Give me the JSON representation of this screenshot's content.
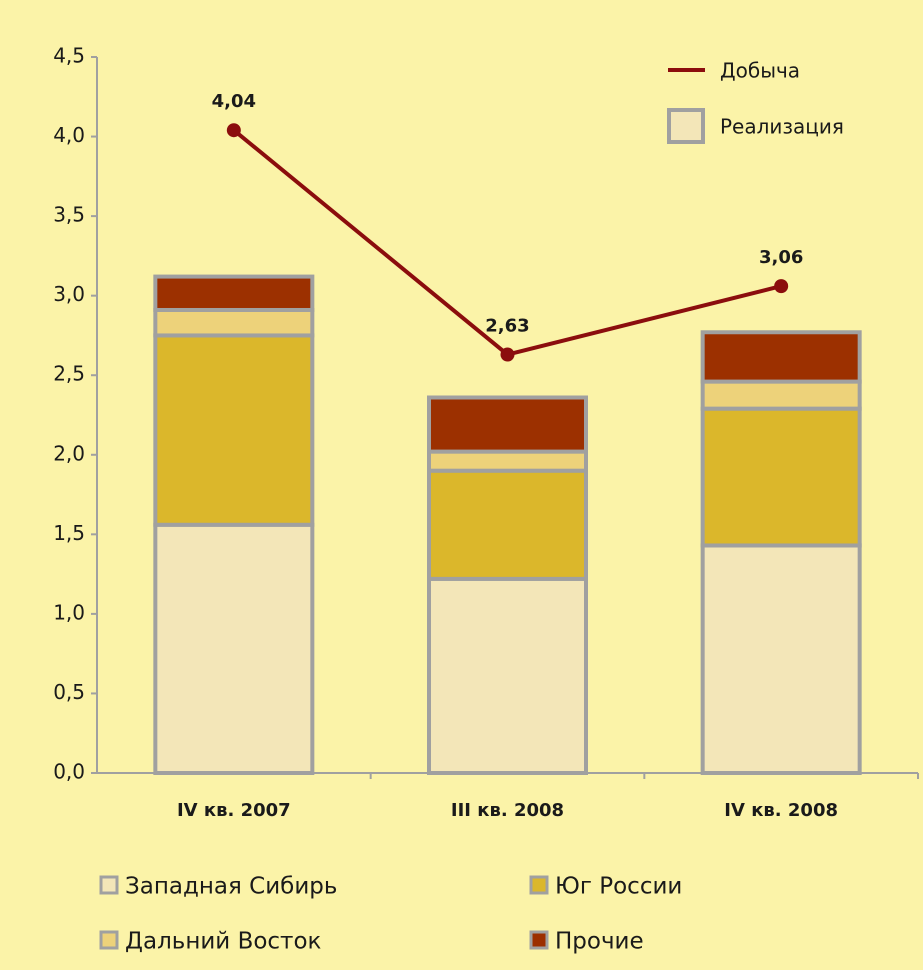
{
  "chart_data": {
    "type": "bar",
    "stacked": true,
    "categories": [
      "IV кв. 2007",
      "III кв. 2008",
      "IV кв. 2008"
    ],
    "series": [
      {
        "name": "Западная Сибирь",
        "color": "#f3e6b8",
        "values": [
          1.56,
          1.22,
          1.43
        ]
      },
      {
        "name": "Юг России",
        "color": "#dbb72b",
        "values": [
          1.19,
          0.68,
          0.86
        ]
      },
      {
        "name": "Дальний Восток",
        "color": "#edd27a",
        "values": [
          0.16,
          0.12,
          0.17
        ]
      },
      {
        "name": "Прочие",
        "color": "#9c3000",
        "values": [
          0.21,
          0.34,
          0.31
        ]
      }
    ],
    "stack_legend_label": "Реализация",
    "line_series": {
      "name": "Добыча",
      "color": "#8b0d0d",
      "values": [
        4.04,
        2.63,
        3.06
      ],
      "value_labels": [
        "4,04",
        "2,63",
        "3,06"
      ]
    },
    "ylim": [
      0,
      4.5
    ],
    "yticks": [
      {
        "value": 0,
        "label": "0,0"
      },
      {
        "value": 0.5,
        "label": "0,5"
      },
      {
        "value": 1,
        "label": "1,0"
      },
      {
        "value": 1.5,
        "label": "1,5"
      },
      {
        "value": 2,
        "label": "2,0"
      },
      {
        "value": 2.5,
        "label": "2,5"
      },
      {
        "value": 3,
        "label": "3,0"
      },
      {
        "value": 3.5,
        "label": "3,5"
      },
      {
        "value": 4,
        "label": "4,0"
      },
      {
        "value": 4.5,
        "label": "4,5"
      }
    ]
  }
}
